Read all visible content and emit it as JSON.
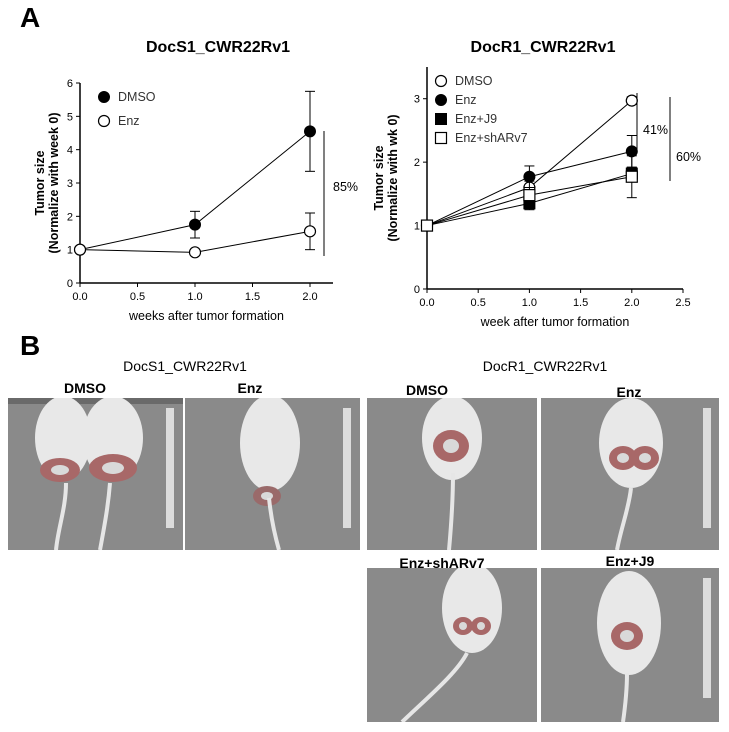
{
  "panel_a_label": "A",
  "panel_b_label": "B",
  "chart_data": [
    {
      "type": "line",
      "title": "DocS1_CWR22Rv1",
      "xlabel": "weeks after tumor formation",
      "ylabel_lines": [
        "Tumor size",
        "(Normalize with week 0)"
      ],
      "xlim": [
        0,
        2.2
      ],
      "ylim": [
        0,
        6
      ],
      "xticks": [
        "0.0",
        "0.5",
        "1.0",
        "1.5",
        "2.0"
      ],
      "yticks": [
        "0",
        "1",
        "2",
        "3",
        "4",
        "5",
        "6"
      ],
      "legend": "top-left",
      "x": [
        0,
        1,
        2
      ],
      "series": [
        {
          "name": "DMSO",
          "marker": "filled-circle",
          "values": [
            1.0,
            1.75,
            4.55
          ],
          "err": [
            0,
            0.4,
            1.2
          ]
        },
        {
          "name": "Enz",
          "marker": "open-circle",
          "values": [
            1.0,
            0.92,
            1.55
          ],
          "err": [
            0,
            0.05,
            0.55
          ]
        }
      ],
      "annotations": [
        {
          "text": "85%"
        }
      ]
    },
    {
      "type": "line",
      "title": "DocR1_CWR22Rv1",
      "xlabel": "week after tumor formation",
      "ylabel_lines": [
        "Tumor size",
        "(Normalize with wk 0)"
      ],
      "xlim": [
        0,
        2.5
      ],
      "ylim": [
        0,
        3.5
      ],
      "xticks": [
        "0.0",
        "0.5",
        "1.0",
        "1.5",
        "2.0",
        "2.5"
      ],
      "yticks": [
        "0",
        "1",
        "2",
        "3"
      ],
      "legend": "top-left",
      "x": [
        0,
        1,
        2
      ],
      "series": [
        {
          "name": "DMSO",
          "marker": "open-circle",
          "values": [
            1.0,
            1.6,
            2.97
          ],
          "err": [
            0,
            0.1,
            0.06
          ]
        },
        {
          "name": "Enz",
          "marker": "filled-circle",
          "values": [
            1.0,
            1.77,
            2.17
          ],
          "err": [
            0,
            0.17,
            0.25
          ]
        },
        {
          "name": "Enz+J9",
          "marker": "filled-square",
          "values": [
            1.0,
            1.35,
            1.82
          ],
          "err": [
            0,
            0.1,
            0.1
          ]
        },
        {
          "name": "Enz+shARv7",
          "marker": "open-square",
          "values": [
            1.0,
            1.48,
            1.77
          ],
          "err": [
            0,
            0.12,
            0.33
          ]
        }
      ],
      "annotations": [
        {
          "text": "41%"
        },
        {
          "text": "60%"
        }
      ]
    }
  ],
  "images": {
    "left_group_title": "DocS1_CWR22Rv1",
    "right_group_title": "DocR1_CWR22Rv1",
    "labels": [
      "DMSO",
      "Enz",
      "DMSO",
      "Enz",
      "Enz+shARv7",
      "Enz+J9"
    ]
  }
}
